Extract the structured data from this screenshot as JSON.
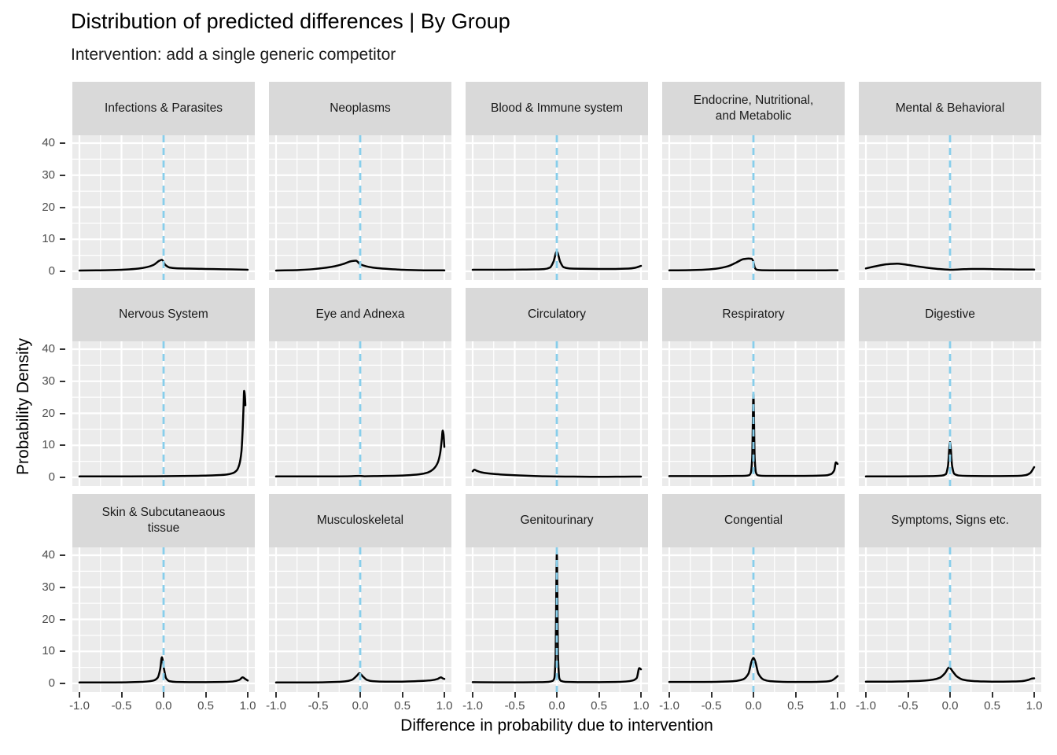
{
  "chart_data": {
    "type": "line",
    "subtype": "faceted-density",
    "title": "Distribution of predicted differences | By Group",
    "subtitle": "Intervention: add a single generic competitor",
    "xlabel": "Difference in probability due to intervention",
    "ylabel": "Probability Density",
    "xlim": [
      -1,
      1
    ],
    "ylim": [
      0,
      40
    ],
    "x_tick_values": [
      -1.0,
      -0.5,
      0.0,
      0.5,
      1.0
    ],
    "x_tick_labels": [
      "-1.0",
      "-0.5",
      "0.0",
      "0.5",
      "1.0"
    ],
    "y_tick_values": [
      0,
      10,
      20,
      30,
      40
    ],
    "y_tick_labels": [
      "0",
      "10",
      "20",
      "30",
      "40"
    ],
    "x_minor_ticks": [
      -0.75,
      -0.25,
      0.25,
      0.75
    ],
    "y_minor_ticks": [
      5,
      15,
      25,
      35
    ],
    "grid": true,
    "legend": "none",
    "colors": {
      "panel_background": "#EBEBEB",
      "strip_background": "#D9D9D9",
      "gridline": "#FFFFFF",
      "curve": "#000000",
      "reference_line": "#87CEEB",
      "axis_text": "#4d4d4d",
      "tick_mark": "#333333"
    },
    "reference_line": {
      "x": 0,
      "style": "dashed",
      "color": "#87CEEB"
    },
    "facets": [
      {
        "label": "Infections & Parasites",
        "points": [
          [
            -1,
            0.25
          ],
          [
            -0.8,
            0.3
          ],
          [
            -0.6,
            0.4
          ],
          [
            -0.45,
            0.55
          ],
          [
            -0.3,
            0.85
          ],
          [
            -0.2,
            1.3
          ],
          [
            -0.12,
            2.0
          ],
          [
            -0.05,
            3.3
          ],
          [
            -0.02,
            3.6
          ],
          [
            0.02,
            2.0
          ],
          [
            0.07,
            1.2
          ],
          [
            0.15,
            0.95
          ],
          [
            0.3,
            0.85
          ],
          [
            0.5,
            0.75
          ],
          [
            0.7,
            0.65
          ],
          [
            0.9,
            0.55
          ],
          [
            1,
            0.5
          ]
        ]
      },
      {
        "label": "Neoplasms",
        "points": [
          [
            -1,
            0.25
          ],
          [
            -0.8,
            0.35
          ],
          [
            -0.6,
            0.6
          ],
          [
            -0.45,
            1.0
          ],
          [
            -0.3,
            1.6
          ],
          [
            -0.2,
            2.3
          ],
          [
            -0.1,
            3.2
          ],
          [
            -0.05,
            3.3
          ],
          [
            0,
            2.2
          ],
          [
            0.03,
            1.9
          ],
          [
            0.1,
            1.4
          ],
          [
            0.2,
            1.0
          ],
          [
            0.35,
            0.7
          ],
          [
            0.5,
            0.5
          ],
          [
            0.7,
            0.35
          ],
          [
            0.85,
            0.3
          ],
          [
            1,
            0.3
          ]
        ]
      },
      {
        "label": "Blood & Immune system",
        "points": [
          [
            -1,
            0.5
          ],
          [
            -0.8,
            0.5
          ],
          [
            -0.6,
            0.5
          ],
          [
            -0.4,
            0.55
          ],
          [
            -0.25,
            0.6
          ],
          [
            -0.15,
            0.7
          ],
          [
            -0.08,
            1.2
          ],
          [
            -0.04,
            3.0
          ],
          [
            0,
            6.2
          ],
          [
            0.04,
            3.0
          ],
          [
            0.08,
            1.3
          ],
          [
            0.15,
            0.9
          ],
          [
            0.3,
            0.8
          ],
          [
            0.5,
            0.75
          ],
          [
            0.7,
            0.75
          ],
          [
            0.85,
            0.85
          ],
          [
            0.93,
            1.1
          ],
          [
            1,
            1.7
          ]
        ]
      },
      {
        "label": "Endocrine, Nutritional,\nand Metabolic",
        "points": [
          [
            -1,
            0.3
          ],
          [
            -0.8,
            0.35
          ],
          [
            -0.6,
            0.5
          ],
          [
            -0.45,
            0.8
          ],
          [
            -0.3,
            1.6
          ],
          [
            -0.2,
            2.8
          ],
          [
            -0.12,
            3.8
          ],
          [
            -0.06,
            4.0
          ],
          [
            -0.02,
            3.9
          ],
          [
            0,
            3.0
          ],
          [
            0.015,
            1.2
          ],
          [
            0.04,
            0.5
          ],
          [
            0.1,
            0.35
          ],
          [
            0.3,
            0.3
          ],
          [
            0.6,
            0.3
          ],
          [
            0.8,
            0.3
          ],
          [
            1,
            0.35
          ]
        ]
      },
      {
        "label": "Mental & Behavioral",
        "points": [
          [
            -1,
            0.9
          ],
          [
            -0.9,
            1.5
          ],
          [
            -0.75,
            2.2
          ],
          [
            -0.63,
            2.4
          ],
          [
            -0.5,
            2.0
          ],
          [
            -0.38,
            1.5
          ],
          [
            -0.25,
            1.05
          ],
          [
            -0.12,
            0.7
          ],
          [
            0,
            0.5
          ],
          [
            0.12,
            0.6
          ],
          [
            0.25,
            0.75
          ],
          [
            0.4,
            0.75
          ],
          [
            0.55,
            0.65
          ],
          [
            0.7,
            0.6
          ],
          [
            0.85,
            0.55
          ],
          [
            1,
            0.55
          ]
        ]
      },
      {
        "label": "Nervous System",
        "points": [
          [
            -1,
            0.3
          ],
          [
            -0.7,
            0.3
          ],
          [
            -0.4,
            0.3
          ],
          [
            -0.1,
            0.35
          ],
          [
            0.1,
            0.4
          ],
          [
            0.3,
            0.45
          ],
          [
            0.5,
            0.55
          ],
          [
            0.65,
            0.7
          ],
          [
            0.75,
            0.9
          ],
          [
            0.82,
            1.3
          ],
          [
            0.87,
            2.2
          ],
          [
            0.9,
            4.0
          ],
          [
            0.925,
            8.0
          ],
          [
            0.94,
            15
          ],
          [
            0.95,
            22
          ],
          [
            0.957,
            27
          ],
          [
            0.966,
            25.5
          ],
          [
            0.972,
            22.5
          ]
        ]
      },
      {
        "label": "Eye and Adnexa",
        "points": [
          [
            -1,
            0.3
          ],
          [
            -0.7,
            0.3
          ],
          [
            -0.4,
            0.3
          ],
          [
            -0.15,
            0.35
          ],
          [
            0,
            0.45
          ],
          [
            0.05,
            0.35
          ],
          [
            0.2,
            0.4
          ],
          [
            0.4,
            0.5
          ],
          [
            0.55,
            0.65
          ],
          [
            0.7,
            0.95
          ],
          [
            0.8,
            1.5
          ],
          [
            0.87,
            2.6
          ],
          [
            0.92,
            4.5
          ],
          [
            0.95,
            7.5
          ],
          [
            0.97,
            12
          ],
          [
            0.98,
            14.6
          ],
          [
            0.99,
            13.5
          ],
          [
            1,
            9.5
          ]
        ]
      },
      {
        "label": "Circulatory",
        "points": [
          [
            -1,
            1.9
          ],
          [
            -0.98,
            2.4
          ],
          [
            -0.95,
            2.05
          ],
          [
            -0.9,
            1.6
          ],
          [
            -0.82,
            1.25
          ],
          [
            -0.72,
            1.0
          ],
          [
            -0.6,
            0.8
          ],
          [
            -0.45,
            0.6
          ],
          [
            -0.3,
            0.45
          ],
          [
            -0.15,
            0.33
          ],
          [
            0,
            0.27
          ],
          [
            0.2,
            0.23
          ],
          [
            0.4,
            0.2
          ],
          [
            0.6,
            0.2
          ],
          [
            0.8,
            0.22
          ],
          [
            1,
            0.25
          ]
        ]
      },
      {
        "label": "Respiratory",
        "points": [
          [
            -1,
            0.4
          ],
          [
            -0.7,
            0.4
          ],
          [
            -0.4,
            0.4
          ],
          [
            -0.2,
            0.45
          ],
          [
            -0.1,
            0.5
          ],
          [
            -0.05,
            0.7
          ],
          [
            -0.03,
            1.5
          ],
          [
            -0.015,
            6
          ],
          [
            0,
            26
          ],
          [
            0.015,
            6
          ],
          [
            0.03,
            1.5
          ],
          [
            0.05,
            0.7
          ],
          [
            0.1,
            0.5
          ],
          [
            0.3,
            0.45
          ],
          [
            0.5,
            0.45
          ],
          [
            0.7,
            0.5
          ],
          [
            0.85,
            0.6
          ],
          [
            0.92,
            1.0
          ],
          [
            0.96,
            2.2
          ],
          [
            0.98,
            4.7
          ],
          [
            1,
            4.2
          ]
        ]
      },
      {
        "label": "Digestive",
        "points": [
          [
            -1,
            0.3
          ],
          [
            -0.7,
            0.3
          ],
          [
            -0.4,
            0.35
          ],
          [
            -0.2,
            0.4
          ],
          [
            -0.1,
            0.55
          ],
          [
            -0.05,
            1.0
          ],
          [
            -0.025,
            3.5
          ],
          [
            0,
            11
          ],
          [
            0.025,
            3.5
          ],
          [
            0.05,
            1.1
          ],
          [
            0.1,
            0.6
          ],
          [
            0.2,
            0.45
          ],
          [
            0.4,
            0.4
          ],
          [
            0.6,
            0.4
          ],
          [
            0.8,
            0.45
          ],
          [
            0.9,
            0.7
          ],
          [
            0.95,
            1.3
          ],
          [
            1,
            3.2
          ]
        ]
      },
      {
        "label": "Skin & Subcutaneaous\ntissue",
        "points": [
          [
            -1,
            0.3
          ],
          [
            -0.7,
            0.3
          ],
          [
            -0.45,
            0.35
          ],
          [
            -0.3,
            0.45
          ],
          [
            -0.2,
            0.6
          ],
          [
            -0.12,
            0.9
          ],
          [
            -0.07,
            1.8
          ],
          [
            -0.04,
            4.5
          ],
          [
            -0.02,
            8.2
          ],
          [
            0.005,
            4.5
          ],
          [
            0.03,
            1.6
          ],
          [
            0.07,
            0.7
          ],
          [
            0.15,
            0.45
          ],
          [
            0.3,
            0.4
          ],
          [
            0.5,
            0.4
          ],
          [
            0.7,
            0.45
          ],
          [
            0.82,
            0.6
          ],
          [
            0.9,
            1.1
          ],
          [
            0.94,
            1.9
          ],
          [
            0.97,
            1.4
          ],
          [
            1,
            0.9
          ]
        ]
      },
      {
        "label": "Musculoskeletal",
        "points": [
          [
            -1,
            0.3
          ],
          [
            -0.7,
            0.3
          ],
          [
            -0.45,
            0.35
          ],
          [
            -0.3,
            0.45
          ],
          [
            -0.18,
            0.65
          ],
          [
            -0.1,
            1.1
          ],
          [
            -0.04,
            2.4
          ],
          [
            -0.01,
            3.2
          ],
          [
            0.03,
            2.2
          ],
          [
            0.08,
            1.1
          ],
          [
            0.15,
            0.7
          ],
          [
            0.3,
            0.55
          ],
          [
            0.45,
            0.55
          ],
          [
            0.6,
            0.65
          ],
          [
            0.75,
            0.8
          ],
          [
            0.85,
            1.0
          ],
          [
            0.92,
            1.4
          ],
          [
            0.96,
            1.9
          ],
          [
            0.98,
            1.6
          ],
          [
            1,
            1.4
          ]
        ]
      },
      {
        "label": "Genitourinary",
        "points": [
          [
            -1,
            0.4
          ],
          [
            -0.7,
            0.35
          ],
          [
            -0.4,
            0.35
          ],
          [
            -0.2,
            0.4
          ],
          [
            -0.1,
            0.5
          ],
          [
            -0.05,
            0.8
          ],
          [
            -0.03,
            1.6
          ],
          [
            -0.015,
            8
          ],
          [
            0,
            40.5
          ],
          [
            0.015,
            8
          ],
          [
            0.03,
            1.6
          ],
          [
            0.05,
            0.8
          ],
          [
            0.1,
            0.5
          ],
          [
            0.3,
            0.4
          ],
          [
            0.5,
            0.4
          ],
          [
            0.7,
            0.45
          ],
          [
            0.82,
            0.6
          ],
          [
            0.9,
            0.9
          ],
          [
            0.95,
            1.7
          ],
          [
            0.98,
            4.8
          ],
          [
            1,
            4.4
          ]
        ]
      },
      {
        "label": "Congential",
        "points": [
          [
            -1,
            0.45
          ],
          [
            -0.7,
            0.45
          ],
          [
            -0.45,
            0.5
          ],
          [
            -0.3,
            0.6
          ],
          [
            -0.2,
            0.8
          ],
          [
            -0.12,
            1.3
          ],
          [
            -0.06,
            3.0
          ],
          [
            -0.02,
            7.0
          ],
          [
            0,
            8.0
          ],
          [
            0.02,
            7.0
          ],
          [
            0.06,
            3.0
          ],
          [
            0.12,
            1.2
          ],
          [
            0.2,
            0.7
          ],
          [
            0.35,
            0.5
          ],
          [
            0.55,
            0.45
          ],
          [
            0.75,
            0.5
          ],
          [
            0.87,
            0.6
          ],
          [
            0.93,
            0.9
          ],
          [
            0.97,
            1.6
          ],
          [
            1,
            2.3
          ]
        ]
      },
      {
        "label": "Symptoms, Signs etc.",
        "points": [
          [
            -1,
            0.55
          ],
          [
            -0.8,
            0.55
          ],
          [
            -0.6,
            0.6
          ],
          [
            -0.45,
            0.7
          ],
          [
            -0.3,
            0.9
          ],
          [
            -0.2,
            1.2
          ],
          [
            -0.12,
            1.8
          ],
          [
            -0.06,
            3.2
          ],
          [
            -0.01,
            5.0
          ],
          [
            0.03,
            3.8
          ],
          [
            0.08,
            2.2
          ],
          [
            0.15,
            1.2
          ],
          [
            0.25,
            0.8
          ],
          [
            0.4,
            0.6
          ],
          [
            0.6,
            0.55
          ],
          [
            0.75,
            0.6
          ],
          [
            0.85,
            0.7
          ],
          [
            0.93,
            1.1
          ],
          [
            0.97,
            1.5
          ],
          [
            1,
            1.6
          ]
        ]
      }
    ]
  }
}
